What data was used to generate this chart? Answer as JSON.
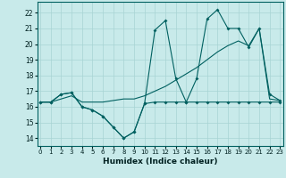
{
  "xlabel": "Humidex (Indice chaleur)",
  "bg_color": "#c8eaea",
  "line_color": "#006060",
  "grid_color": "#a8d4d4",
  "xlim": [
    -0.3,
    23.3
  ],
  "ylim": [
    13.5,
    22.7
  ],
  "yticks": [
    14,
    15,
    16,
    17,
    18,
    19,
    20,
    21,
    22
  ],
  "xticks": [
    0,
    1,
    2,
    3,
    4,
    5,
    6,
    7,
    8,
    9,
    10,
    11,
    12,
    13,
    14,
    15,
    16,
    17,
    18,
    19,
    20,
    21,
    22,
    23
  ],
  "line1_x": [
    0,
    1,
    2,
    3,
    4,
    5,
    6,
    7,
    8,
    9,
    10,
    11,
    12,
    13,
    14,
    15,
    16,
    17,
    18,
    19,
    20,
    21,
    22,
    23
  ],
  "line1_y": [
    16.3,
    16.3,
    16.8,
    16.9,
    16.0,
    15.8,
    15.4,
    14.7,
    14.0,
    14.4,
    16.2,
    16.3,
    16.3,
    16.3,
    16.3,
    16.3,
    16.3,
    16.3,
    16.3,
    16.3,
    16.3,
    16.3,
    16.3,
    16.3
  ],
  "line2_x": [
    0,
    1,
    2,
    3,
    4,
    5,
    6,
    7,
    8,
    9,
    10,
    11,
    12,
    13,
    14,
    15,
    16,
    17,
    18,
    19,
    20,
    21,
    22,
    23
  ],
  "line2_y": [
    16.3,
    16.3,
    16.5,
    16.7,
    16.3,
    16.3,
    16.3,
    16.4,
    16.5,
    16.5,
    16.7,
    17.0,
    17.3,
    17.7,
    18.1,
    18.5,
    19.0,
    19.5,
    19.9,
    20.2,
    19.9,
    21.0,
    16.5,
    16.4
  ],
  "line3_x": [
    0,
    1,
    2,
    3,
    4,
    5,
    6,
    7,
    8,
    9,
    10,
    11,
    12,
    13,
    14,
    15,
    16,
    17,
    18,
    19,
    20,
    21,
    22,
    23
  ],
  "line3_y": [
    16.3,
    16.3,
    16.8,
    16.9,
    16.0,
    15.8,
    15.4,
    14.7,
    14.0,
    14.4,
    16.2,
    20.9,
    21.5,
    17.8,
    16.3,
    17.8,
    21.6,
    22.2,
    21.0,
    21.0,
    19.8,
    21.0,
    16.8,
    16.4
  ]
}
